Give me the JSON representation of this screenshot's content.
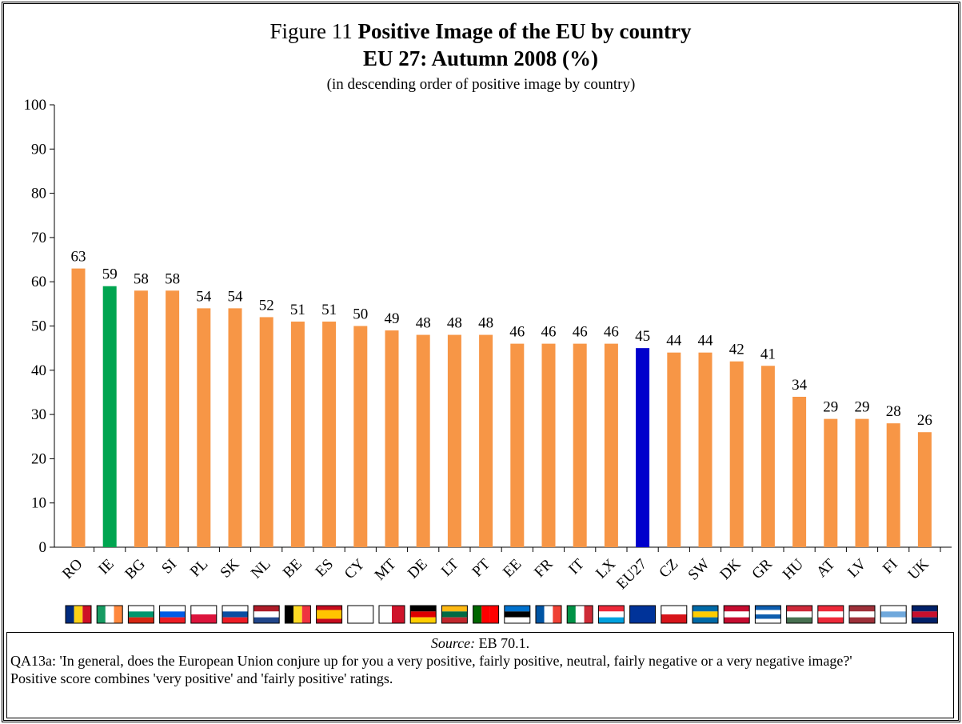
{
  "chart_data": {
    "type": "bar",
    "figure_label": "Figure 11",
    "title": "Positive Image of the EU by country EU 27: Autumn 2008 (%)",
    "subtitle": "(in descending order of  positive image by country)",
    "categories": [
      "RO",
      "IE",
      "BG",
      "SI",
      "PL",
      "SK",
      "NL",
      "BE",
      "ES",
      "CY",
      "MT",
      "DE",
      "LT",
      "PT",
      "EE",
      "FR",
      "IT",
      "LX",
      "EU27",
      "CZ",
      "SW",
      "DK",
      "GR",
      "HU",
      "AT",
      "LV",
      "FI",
      "UK"
    ],
    "values": [
      63,
      59,
      58,
      58,
      54,
      54,
      52,
      51,
      51,
      50,
      49,
      48,
      48,
      48,
      46,
      46,
      46,
      46,
      45,
      44,
      44,
      42,
      41,
      34,
      29,
      29,
      28,
      26
    ],
    "colors": [
      "#f79646",
      "#00a550",
      "#f79646",
      "#f79646",
      "#f79646",
      "#f79646",
      "#f79646",
      "#f79646",
      "#f79646",
      "#f79646",
      "#f79646",
      "#f79646",
      "#f79646",
      "#f79646",
      "#f79646",
      "#f79646",
      "#f79646",
      "#f79646",
      "#0000cc",
      "#f79646",
      "#f79646",
      "#f79646",
      "#f79646",
      "#f79646",
      "#f79646",
      "#f79646",
      "#f79646",
      "#f79646"
    ],
    "ylim": [
      0,
      100
    ],
    "yticks": [
      0,
      10,
      20,
      30,
      40,
      50,
      60,
      70,
      80,
      90,
      100
    ],
    "source_label": "Source:",
    "source": "EB 70.1.",
    "question": "QA13a:  'In general, does the European Union conjure up for you a very positive, fairly positive, neutral, fairly negative or a very negative image?'",
    "note": "Positive score combines 'very positive' and 'fairly positive' ratings."
  }
}
